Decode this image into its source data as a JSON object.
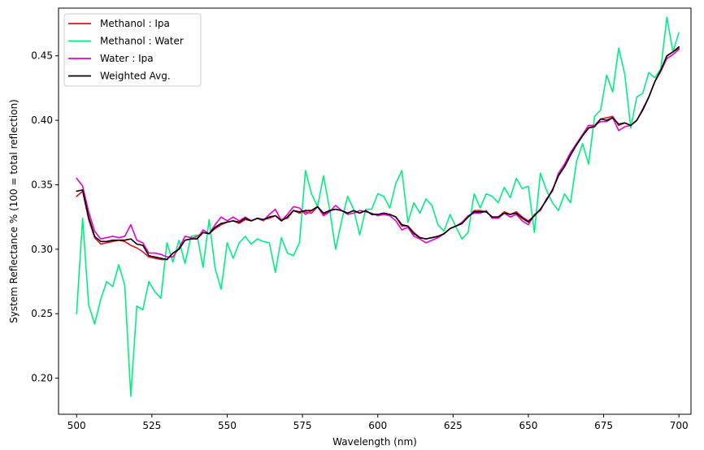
{
  "chart_data": {
    "type": "line",
    "title": "",
    "xlabel": "Wavelength (nm)",
    "ylabel": "System Reflectance % (100 = total reflection)",
    "xlim": [
      494,
      704
    ],
    "ylim": [
      0.172,
      0.487
    ],
    "xticks": [
      500,
      525,
      550,
      575,
      600,
      625,
      650,
      675,
      700
    ],
    "xtick_labels": [
      "500",
      "525",
      "550",
      "575",
      "600",
      "625",
      "650",
      "675",
      "700"
    ],
    "yticks": [
      0.2,
      0.25,
      0.3,
      0.35,
      0.4,
      0.45
    ],
    "ytick_labels": [
      "0.20",
      "0.25",
      "0.30",
      "0.35",
      "0.40",
      "0.45"
    ],
    "grid": false,
    "legend_position": "top-left",
    "x": [
      500,
      502,
      504,
      506,
      508,
      510,
      512,
      514,
      516,
      518,
      520,
      522,
      524,
      526,
      528,
      530,
      532,
      534,
      536,
      538,
      540,
      542,
      544,
      546,
      548,
      550,
      552,
      554,
      556,
      558,
      560,
      562,
      564,
      566,
      568,
      570,
      572,
      574,
      576,
      578,
      580,
      582,
      584,
      586,
      588,
      590,
      592,
      594,
      596,
      598,
      600,
      602,
      604,
      606,
      608,
      610,
      612,
      614,
      616,
      618,
      620,
      622,
      624,
      626,
      628,
      630,
      632,
      634,
      636,
      638,
      640,
      642,
      644,
      646,
      648,
      650,
      652,
      654,
      656,
      658,
      660,
      662,
      664,
      666,
      668,
      670,
      672,
      674,
      676,
      678,
      680,
      682,
      684,
      686,
      688,
      690,
      692,
      694,
      696,
      698,
      700
    ],
    "series": [
      {
        "name": "Methanol : Ipa",
        "color": "#e8101e",
        "values": [
          0.341,
          0.345,
          0.323,
          0.309,
          0.304,
          0.305,
          0.306,
          0.307,
          0.306,
          0.303,
          0.301,
          0.298,
          0.294,
          0.293,
          0.292,
          0.292,
          0.297,
          0.3,
          0.307,
          0.308,
          0.31,
          0.313,
          0.312,
          0.316,
          0.319,
          0.321,
          0.322,
          0.32,
          0.323,
          0.322,
          0.324,
          0.323,
          0.324,
          0.326,
          0.323,
          0.324,
          0.33,
          0.328,
          0.329,
          0.328,
          0.333,
          0.327,
          0.33,
          0.331,
          0.33,
          0.328,
          0.33,
          0.328,
          0.33,
          0.327,
          0.327,
          0.328,
          0.327,
          0.325,
          0.318,
          0.318,
          0.313,
          0.309,
          0.308,
          0.309,
          0.31,
          0.312,
          0.316,
          0.318,
          0.32,
          0.325,
          0.33,
          0.33,
          0.329,
          0.325,
          0.325,
          0.329,
          0.327,
          0.329,
          0.325,
          0.322,
          0.326,
          0.331,
          0.338,
          0.346,
          0.357,
          0.364,
          0.373,
          0.381,
          0.388,
          0.394,
          0.396,
          0.401,
          0.402,
          0.403,
          0.396,
          0.398,
          0.396,
          0.4,
          0.408,
          0.418,
          0.43,
          0.439,
          0.45,
          0.453,
          0.456
        ]
      },
      {
        "name": "Methanol : Water",
        "color": "#00f080",
        "values": [
          0.25,
          0.324,
          0.257,
          0.242,
          0.261,
          0.275,
          0.271,
          0.288,
          0.272,
          0.186,
          0.256,
          0.253,
          0.275,
          0.267,
          0.262,
          0.305,
          0.29,
          0.307,
          0.289,
          0.31,
          0.311,
          0.286,
          0.323,
          0.285,
          0.269,
          0.305,
          0.293,
          0.305,
          0.31,
          0.304,
          0.308,
          0.306,
          0.305,
          0.282,
          0.309,
          0.297,
          0.295,
          0.305,
          0.361,
          0.343,
          0.333,
          0.357,
          0.331,
          0.3,
          0.322,
          0.341,
          0.331,
          0.311,
          0.331,
          0.331,
          0.343,
          0.341,
          0.332,
          0.351,
          0.361,
          0.321,
          0.336,
          0.328,
          0.339,
          0.334,
          0.319,
          0.314,
          0.327,
          0.317,
          0.308,
          0.313,
          0.343,
          0.332,
          0.343,
          0.341,
          0.336,
          0.348,
          0.34,
          0.355,
          0.347,
          0.349,
          0.313,
          0.359,
          0.346,
          0.336,
          0.33,
          0.343,
          0.336,
          0.368,
          0.382,
          0.366,
          0.403,
          0.408,
          0.435,
          0.422,
          0.456,
          0.436,
          0.394,
          0.418,
          0.421,
          0.437,
          0.433,
          0.44,
          0.48,
          0.453,
          0.468
        ]
      },
      {
        "name": "Water : Ipa",
        "color": "#e600d2",
        "values": [
          0.355,
          0.349,
          0.329,
          0.314,
          0.308,
          0.309,
          0.31,
          0.309,
          0.31,
          0.319,
          0.307,
          0.305,
          0.297,
          0.297,
          0.296,
          0.294,
          0.294,
          0.301,
          0.31,
          0.309,
          0.308,
          0.315,
          0.312,
          0.319,
          0.325,
          0.322,
          0.325,
          0.322,
          0.325,
          0.322,
          0.324,
          0.322,
          0.327,
          0.331,
          0.322,
          0.327,
          0.333,
          0.332,
          0.327,
          0.33,
          0.333,
          0.326,
          0.329,
          0.334,
          0.33,
          0.327,
          0.328,
          0.33,
          0.329,
          0.328,
          0.326,
          0.327,
          0.326,
          0.322,
          0.315,
          0.317,
          0.31,
          0.308,
          0.305,
          0.307,
          0.309,
          0.312,
          0.316,
          0.318,
          0.321,
          0.326,
          0.328,
          0.328,
          0.33,
          0.324,
          0.324,
          0.328,
          0.325,
          0.327,
          0.322,
          0.319,
          0.327,
          0.33,
          0.339,
          0.345,
          0.359,
          0.366,
          0.375,
          0.382,
          0.389,
          0.396,
          0.396,
          0.399,
          0.399,
          0.402,
          0.392,
          0.395,
          0.396,
          0.4,
          0.409,
          0.418,
          0.43,
          0.438,
          0.448,
          0.451,
          0.455
        ]
      },
      {
        "name": "Weighted Avg.",
        "color": "#000000",
        "values": [
          0.345,
          0.346,
          0.325,
          0.31,
          0.306,
          0.306,
          0.307,
          0.307,
          0.307,
          0.308,
          0.304,
          0.303,
          0.295,
          0.294,
          0.293,
          0.292,
          0.297,
          0.3,
          0.307,
          0.308,
          0.308,
          0.313,
          0.312,
          0.317,
          0.32,
          0.321,
          0.322,
          0.321,
          0.324,
          0.322,
          0.324,
          0.323,
          0.325,
          0.326,
          0.322,
          0.325,
          0.33,
          0.329,
          0.33,
          0.33,
          0.333,
          0.328,
          0.33,
          0.331,
          0.33,
          0.328,
          0.33,
          0.328,
          0.33,
          0.327,
          0.327,
          0.328,
          0.327,
          0.325,
          0.319,
          0.318,
          0.312,
          0.309,
          0.308,
          0.309,
          0.31,
          0.312,
          0.316,
          0.318,
          0.32,
          0.325,
          0.329,
          0.329,
          0.329,
          0.325,
          0.325,
          0.328,
          0.327,
          0.328,
          0.324,
          0.321,
          0.326,
          0.331,
          0.338,
          0.346,
          0.357,
          0.364,
          0.373,
          0.381,
          0.388,
          0.394,
          0.395,
          0.401,
          0.4,
          0.402,
          0.397,
          0.398,
          0.396,
          0.4,
          0.408,
          0.418,
          0.43,
          0.439,
          0.45,
          0.453,
          0.457
        ]
      }
    ]
  }
}
